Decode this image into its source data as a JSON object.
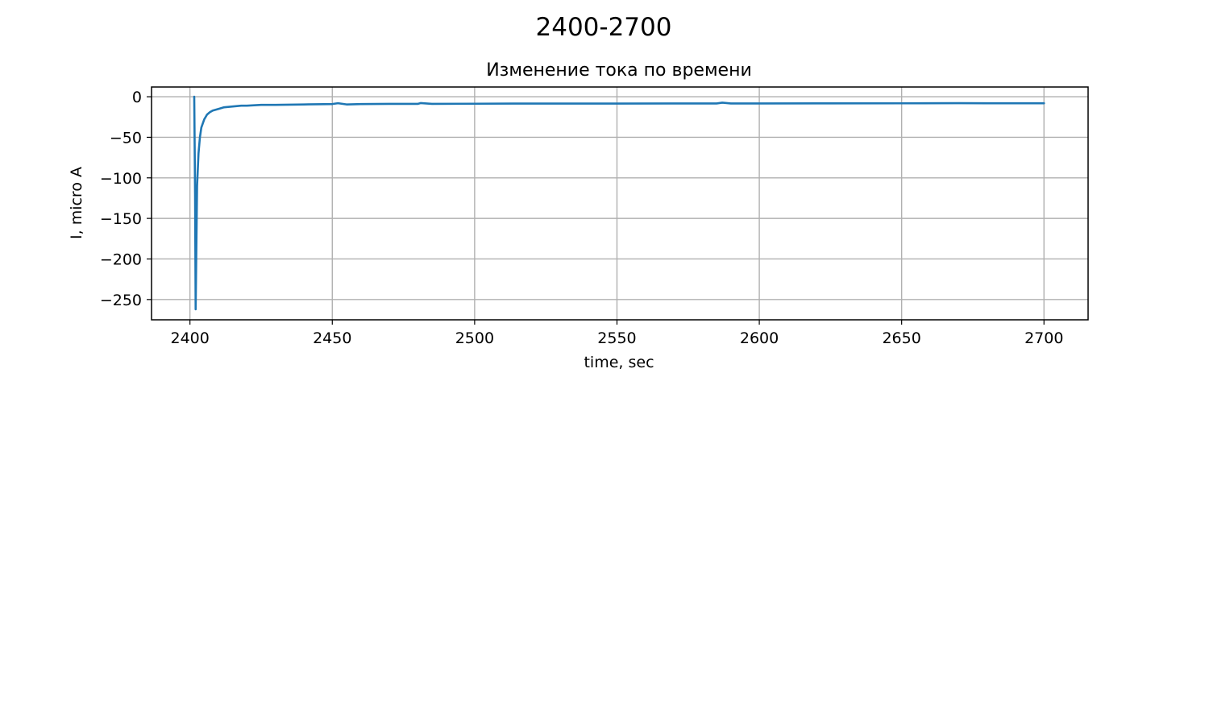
{
  "figure": {
    "suptitle": "2400-2700"
  },
  "chart_data": {
    "type": "line",
    "title": "Изменение тока по времени",
    "xlabel": "time, sec",
    "ylabel": "I, micro A",
    "xlim": [
      2386.5,
      2715.5
    ],
    "ylim": [
      -275,
      12
    ],
    "grid": true,
    "xticks": [
      2400,
      2450,
      2500,
      2550,
      2600,
      2650,
      2700
    ],
    "xtick_labels": [
      "2400",
      "2450",
      "2500",
      "2550",
      "2600",
      "2650",
      "2700"
    ],
    "yticks": [
      0,
      -50,
      -100,
      -150,
      -200,
      -250
    ],
    "ytick_labels": [
      "0",
      "−50",
      "−100",
      "−150",
      "−200",
      "−250"
    ],
    "series": [
      {
        "color": "#1f77b4",
        "x": [
          2401.5,
          2401.8,
          2402.0,
          2402.2,
          2402.5,
          2403,
          2403.5,
          2404,
          2405,
          2406,
          2407,
          2408,
          2410,
          2412,
          2415,
          2418,
          2420,
          2425,
          2430,
          2440,
          2450,
          2452,
          2455,
          2460,
          2470,
          2480,
          2481,
          2485,
          2500,
          2520,
          2550,
          2570,
          2585,
          2587,
          2590,
          2600,
          2625,
          2650,
          2670,
          2680,
          2700
        ],
        "y": [
          0,
          -120,
          -262,
          -200,
          -110,
          -70,
          -50,
          -38,
          -28,
          -22,
          -19,
          -17,
          -15,
          -13,
          -12,
          -11,
          -11,
          -10,
          -10,
          -9.5,
          -9,
          -8,
          -9.5,
          -9,
          -8.8,
          -8.8,
          -7.8,
          -8.8,
          -8.6,
          -8.4,
          -8.4,
          -8.3,
          -8.3,
          -7.3,
          -8.3,
          -8.3,
          -8.2,
          -8.1,
          -7.9,
          -8.0,
          -8.0
        ]
      }
    ]
  }
}
